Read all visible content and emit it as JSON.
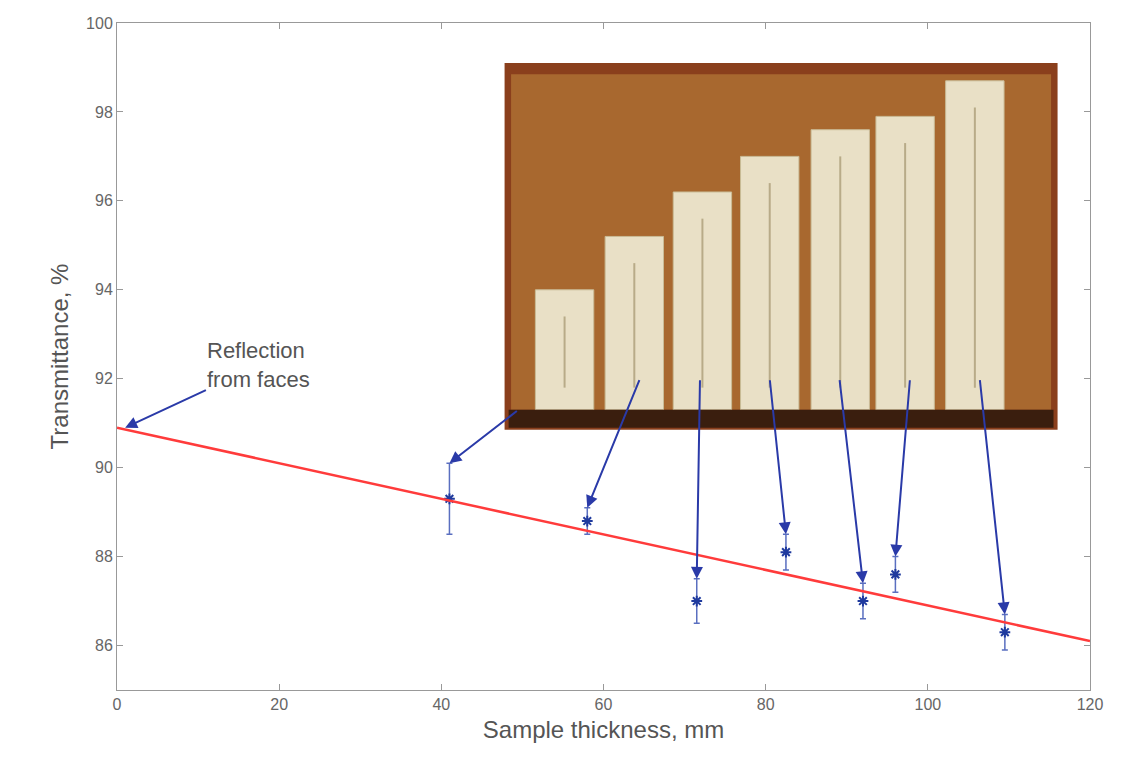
{
  "chart_data": {
    "type": "scatter",
    "x_label": "Sample thickness, mm",
    "y_label": "Transmittance, %",
    "xlim": [
      0,
      120
    ],
    "xticks": [
      0,
      20,
      40,
      60,
      80,
      100,
      120
    ],
    "ylim": [
      85,
      100
    ],
    "yticks": [
      86,
      88,
      90,
      92,
      94,
      96,
      98,
      100
    ],
    "grid": false,
    "series": [
      {
        "type": "scatter",
        "color": "#1f3a9e",
        "marker": "asterisk",
        "x": [
          41,
          58,
          71.5,
          82.5,
          92,
          96,
          109.5
        ],
        "values": [
          89.3,
          88.8,
          87.0,
          88.1,
          87.0,
          87.6,
          86.3
        ],
        "error": [
          0.8,
          0.3,
          0.5,
          0.4,
          0.4,
          0.4,
          0.4
        ]
      },
      {
        "type": "line",
        "color": "#ff3b3b",
        "line_style": "solid",
        "x": [
          0,
          120
        ],
        "values": [
          90.9,
          86.1
        ]
      }
    ],
    "annotations": [
      {
        "text": "Reflection from faces",
        "x": 1,
        "y": 90.9
      }
    ]
  }
}
